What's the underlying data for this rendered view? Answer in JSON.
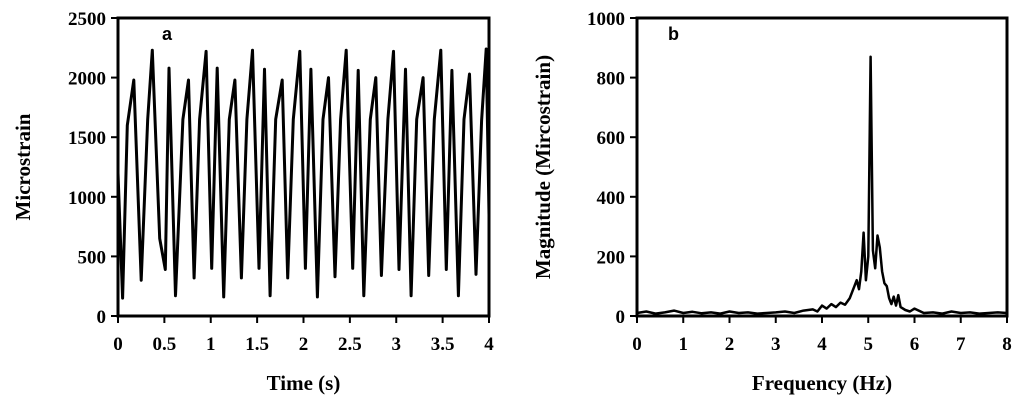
{
  "chart_data": [
    {
      "type": "line",
      "panel_label": "a",
      "title": "",
      "xlabel": "Time (s)",
      "ylabel": "Microstrain",
      "xlim": [
        0,
        4
      ],
      "ylim": [
        0,
        2500
      ],
      "xticks": [
        "0",
        "0.5",
        "1",
        "1.5",
        "2",
        "2.5",
        "3",
        "3.5",
        "4"
      ],
      "yticks": [
        "0",
        "500",
        "1000",
        "1500",
        "2000",
        "2500"
      ],
      "grid": false,
      "series": [
        {
          "color": "#000000",
          "x": [
            0.0,
            0.05,
            0.1,
            0.17,
            0.25,
            0.32,
            0.37,
            0.45,
            0.51,
            0.55,
            0.62,
            0.7,
            0.76,
            0.82,
            0.88,
            0.95,
            1.01,
            1.07,
            1.14,
            1.2,
            1.26,
            1.33,
            1.39,
            1.45,
            1.52,
            1.58,
            1.64,
            1.7,
            1.77,
            1.83,
            1.89,
            1.96,
            2.02,
            2.08,
            2.15,
            2.21,
            2.27,
            2.34,
            2.4,
            2.46,
            2.53,
            2.59,
            2.65,
            2.72,
            2.78,
            2.84,
            2.91,
            2.97,
            3.03,
            3.1,
            3.16,
            3.22,
            3.29,
            3.35,
            3.41,
            3.48,
            3.54,
            3.6,
            3.67,
            3.73,
            3.79,
            3.86,
            3.92,
            3.97,
            4.0
          ],
          "y": [
            1200,
            150,
            1600,
            1980,
            300,
            1650,
            2230,
            650,
            390,
            2080,
            170,
            1650,
            1980,
            320,
            1650,
            2220,
            400,
            2080,
            160,
            1650,
            1980,
            320,
            1650,
            2230,
            400,
            2070,
            170,
            1650,
            1980,
            320,
            1650,
            2220,
            400,
            2070,
            160,
            1650,
            2000,
            330,
            1650,
            2230,
            400,
            2060,
            170,
            1650,
            2000,
            340,
            1650,
            2220,
            390,
            2070,
            170,
            1650,
            2000,
            340,
            1650,
            2230,
            390,
            2060,
            170,
            1650,
            2030,
            350,
            1640,
            2240,
            850
          ]
        }
      ]
    },
    {
      "type": "line",
      "panel_label": "b",
      "title": "",
      "xlabel": "Frequency (Hz)",
      "ylabel": "Magnitude (Mircostrain)",
      "xlim": [
        0,
        8
      ],
      "ylim": [
        0,
        1000
      ],
      "xticks": [
        "0",
        "1",
        "2",
        "3",
        "4",
        "5",
        "6",
        "7",
        "8"
      ],
      "yticks": [
        "0",
        "200",
        "400",
        "600",
        "800",
        "1000"
      ],
      "grid": false,
      "series": [
        {
          "color": "#000000",
          "x": [
            0.0,
            0.2,
            0.4,
            0.6,
            0.8,
            1.0,
            1.2,
            1.4,
            1.6,
            1.8,
            2.0,
            2.2,
            2.4,
            2.6,
            2.8,
            3.0,
            3.2,
            3.4,
            3.6,
            3.8,
            3.9,
            4.0,
            4.1,
            4.2,
            4.3,
            4.4,
            4.5,
            4.6,
            4.7,
            4.75,
            4.8,
            4.85,
            4.9,
            4.95,
            5.0,
            5.05,
            5.1,
            5.15,
            5.2,
            5.25,
            5.3,
            5.35,
            5.4,
            5.45,
            5.5,
            5.55,
            5.6,
            5.65,
            5.7,
            5.8,
            5.9,
            6.0,
            6.2,
            6.4,
            6.6,
            6.8,
            7.0,
            7.2,
            7.4,
            7.6,
            7.8,
            8.0
          ],
          "y": [
            10,
            15,
            8,
            12,
            18,
            10,
            14,
            9,
            12,
            8,
            15,
            10,
            12,
            8,
            10,
            12,
            15,
            10,
            18,
            22,
            15,
            35,
            25,
            40,
            30,
            45,
            38,
            60,
            100,
            120,
            90,
            150,
            280,
            120,
            200,
            870,
            220,
            160,
            270,
            230,
            150,
            110,
            100,
            60,
            40,
            65,
            35,
            70,
            30,
            20,
            15,
            25,
            10,
            12,
            8,
            15,
            10,
            12,
            8,
            10,
            12,
            10
          ]
        }
      ]
    }
  ]
}
